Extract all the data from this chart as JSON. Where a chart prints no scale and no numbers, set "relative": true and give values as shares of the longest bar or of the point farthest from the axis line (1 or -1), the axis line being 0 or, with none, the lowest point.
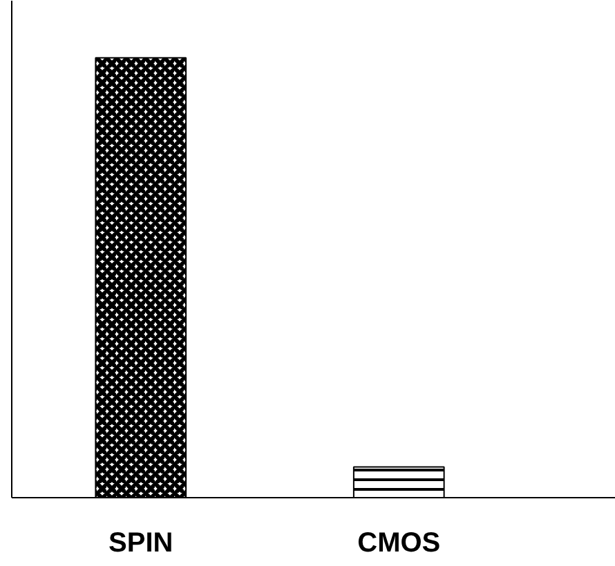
{
  "chart_data": {
    "type": "bar",
    "relative": true,
    "categories": [
      "SPIN",
      "CMOS"
    ],
    "values": [
      1,
      0.07
    ],
    "colors": [
      "#000000",
      "#000000"
    ],
    "grid": false
  }
}
